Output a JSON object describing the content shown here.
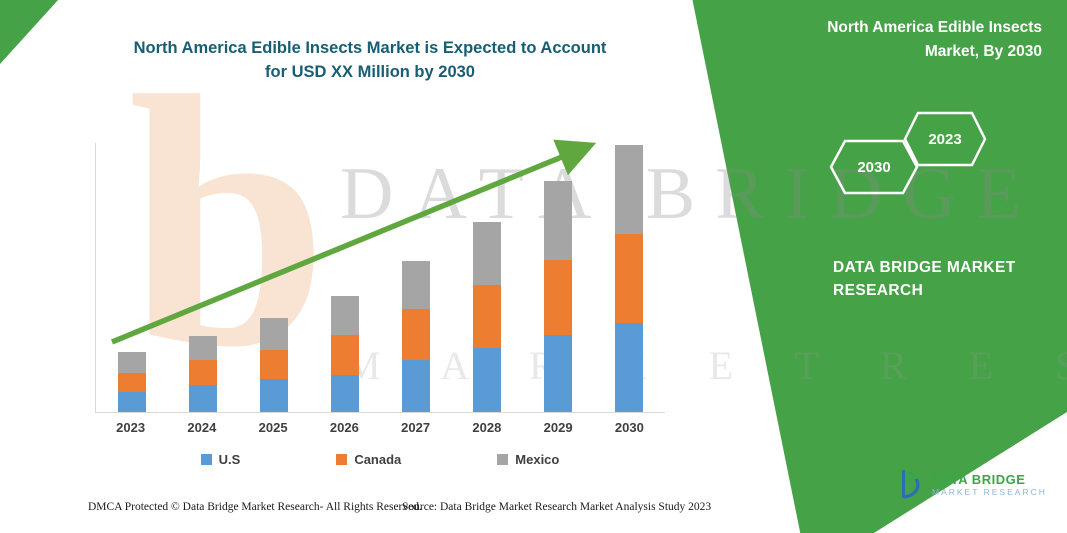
{
  "title": {
    "line1": "North America Edible Insects Market is Expected to Account",
    "line2": "for USD XX Million by 2030"
  },
  "banner": {
    "color": "#46a247",
    "heading_line1": "North America Edible Insects",
    "heading_line2": "Market, By 2030",
    "hexagon_left": "2030",
    "hexagon_right": "2023",
    "brand_line1": "DATA BRIDGE MARKET",
    "brand_line2": "RESEARCH"
  },
  "watermark": {
    "letter": "b",
    "line1": "DATA BRIDGE",
    "line2": "M A R K E T   R E S E A R C H"
  },
  "chart_data": {
    "type": "bar",
    "stacked": true,
    "title": "North America Edible Insects Market is Expected to Account for USD XX Million by 2030",
    "categories": [
      "2023",
      "2024",
      "2025",
      "2026",
      "2027",
      "2028",
      "2029",
      "2030"
    ],
    "series": [
      {
        "name": "U.S",
        "color": "#5b9bd5",
        "values": [
          20,
          27,
          33,
          37,
          52,
          64,
          77,
          89
        ]
      },
      {
        "name": "Canada",
        "color": "#ed7d31",
        "values": [
          19,
          25,
          29,
          40,
          51,
          63,
          75,
          89
        ]
      },
      {
        "name": "Mexico",
        "color": "#a5a5a5",
        "values": [
          21,
          24,
          32,
          39,
          48,
          63,
          79,
          89
        ]
      }
    ],
    "xlabel": "",
    "ylabel": "",
    "ylim": [
      0,
      270
    ],
    "gridlines": false,
    "legend_position": "bottom",
    "trend_arrow": {
      "present": true,
      "color": "#5fa73e"
    }
  },
  "footer": {
    "dmca": "DMCA Protected © Data Bridge Market Research-  All Rights Reserved.",
    "source": "Source: Data Bridge Market Research  Market Analysis Study 2023"
  },
  "logo": {
    "name": "DATA BRIDGE",
    "subtitle": "MARKET RESEARCH"
  }
}
